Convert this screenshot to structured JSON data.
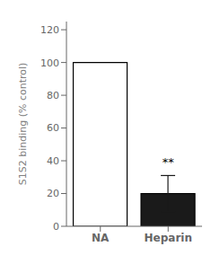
{
  "chart_data": {
    "type": "bar",
    "categories": [
      "NA",
      "Heparin"
    ],
    "values": [
      100,
      20
    ],
    "errors": [
      0,
      11
    ],
    "colors": [
      "#ffffff",
      "#1a1a1a"
    ],
    "ylabel": "S1S2 binding (% control)",
    "ylim": [
      0,
      125
    ],
    "yticks": [
      0,
      20,
      40,
      60,
      80,
      100,
      120
    ],
    "annotation": {
      "text": "**",
      "x": "Heparin",
      "y": 34
    },
    "grid": false
  }
}
